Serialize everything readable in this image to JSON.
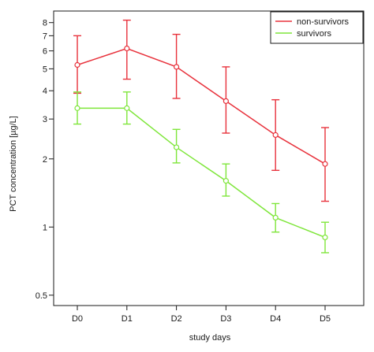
{
  "chart_data": {
    "type": "line",
    "title": "",
    "xlabel": "study days",
    "ylabel": "PCT concentration [µg/L]",
    "yscale": "log",
    "ylim": [
      0.45,
      9.0
    ],
    "yticks": [
      0.5,
      1,
      2,
      3,
      4,
      5,
      6,
      7,
      8
    ],
    "ytick_labels": [
      "0.5",
      "1",
      "2",
      "3",
      "4",
      "5",
      "6",
      "7",
      "8"
    ],
    "categories": [
      "D0",
      "D1",
      "D2",
      "D3",
      "D4",
      "D5"
    ],
    "grid": false,
    "legend_position": "top-right",
    "series": [
      {
        "name": "non-survivors",
        "color": "#e8323c",
        "values": [
          5.2,
          6.15,
          5.1,
          3.6,
          2.55,
          1.9
        ],
        "error_low": [
          3.9,
          4.5,
          3.7,
          2.6,
          1.78,
          1.3
        ],
        "error_high": [
          7.0,
          8.2,
          7.1,
          5.1,
          3.65,
          2.75
        ]
      },
      {
        "name": "survivors",
        "color": "#7fe63b",
        "values": [
          3.35,
          3.35,
          2.25,
          1.6,
          1.1,
          0.9
        ],
        "error_low": [
          2.85,
          2.85,
          1.92,
          1.37,
          0.95,
          0.77
        ],
        "error_high": [
          3.95,
          3.95,
          2.7,
          1.9,
          1.27,
          1.05
        ]
      }
    ]
  }
}
